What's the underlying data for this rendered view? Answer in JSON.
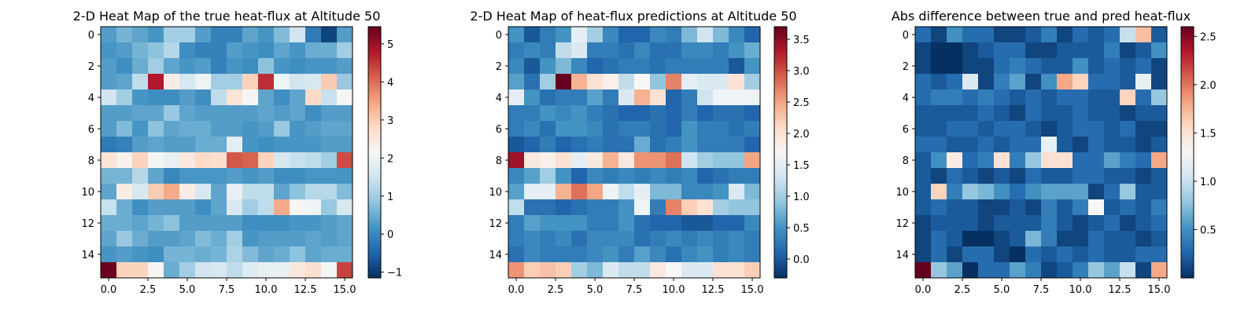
{
  "chart_data": [
    {
      "type": "heatmap",
      "title": "2-D Heat Map of the true heat-flux at Altitude 50",
      "xlabel": "",
      "ylabel": "",
      "colormap": "RdBu_r",
      "vmin": -1.15,
      "vmax": 5.45,
      "xlim": [
        -0.5,
        15.5
      ],
      "ylim": [
        15.5,
        -0.5
      ],
      "x_ticks": [
        0,
        2.5,
        5,
        7.5,
        10,
        12.5,
        15
      ],
      "x_tick_labels": [
        "0.0",
        "2.5",
        "5.0",
        "7.5",
        "10.0",
        "12.5",
        "15.0"
      ],
      "y_ticks": [
        0,
        2,
        4,
        6,
        8,
        10,
        12,
        14
      ],
      "y_tick_labels": [
        "0",
        "2",
        "4",
        "6",
        "8",
        "10",
        "12",
        "14"
      ],
      "colorbar_ticks": [
        -1,
        0,
        1,
        2,
        3,
        4,
        5
      ],
      "colorbar_tick_labels": [
        "−1",
        "0",
        "1",
        "2",
        "3",
        "4",
        "5"
      ],
      "values": [
        [
          0.3,
          0.6,
          0.4,
          0.2,
          1.0,
          1.0,
          0.3,
          -0.1,
          -0.1,
          0.4,
          0.2,
          0.7,
          1.5,
          -0.2,
          -0.9,
          0.3
        ],
        [
          0.2,
          0.3,
          0.6,
          0.8,
          1.2,
          0.1,
          -0.1,
          -0.1,
          0.3,
          0.2,
          0.1,
          0.4,
          0.2,
          0.5,
          0.5,
          1.0
        ],
        [
          0.3,
          0.1,
          0.5,
          1.0,
          0.4,
          0.2,
          0.3,
          -0.1,
          0.2,
          0.1,
          0.8,
          0.2,
          0.1,
          0.2,
          0.2,
          0.3
        ],
        [
          0.3,
          0.4,
          1.3,
          4.8,
          2.4,
          1.6,
          2.0,
          1.0,
          1.0,
          2.9,
          4.6,
          2.0,
          1.5,
          1.6,
          3.0,
          0.9
        ],
        [
          1.5,
          1.0,
          0.2,
          0.1,
          0.1,
          0.3,
          0.1,
          1.3,
          2.6,
          2.2,
          0.4,
          0.1,
          0.4,
          2.8,
          1.4,
          2.2
        ],
        [
          0.3,
          0.3,
          0.4,
          0.4,
          0.9,
          0.4,
          0.3,
          0.3,
          0.3,
          0.3,
          0.4,
          0.3,
          0.4,
          0.1,
          0.3,
          0.3
        ],
        [
          0.3,
          0.7,
          0.2,
          0.8,
          0.4,
          0.5,
          0.5,
          0.3,
          0.3,
          0.2,
          0.3,
          0.9,
          0.2,
          0.3,
          0.4,
          0.4
        ],
        [
          -0.2,
          -0.1,
          0.3,
          0.4,
          0.3,
          0.3,
          0.5,
          0.5,
          1.8,
          0.2,
          0.1,
          0.2,
          0.2,
          0.2,
          0.3,
          0.3
        ],
        [
          2.6,
          2.3,
          2.9,
          2.1,
          1.9,
          2.5,
          2.8,
          2.7,
          4.2,
          4.1,
          2.9,
          1.6,
          1.4,
          1.3,
          1.0,
          4.3
        ],
        [
          0.6,
          0.6,
          1.2,
          0.4,
          0.0,
          0.2,
          0.2,
          0.2,
          0.3,
          0.2,
          0.3,
          0.1,
          0.1,
          0.2,
          0.2,
          0.2
        ],
        [
          0.4,
          2.4,
          1.6,
          3.0,
          3.4,
          2.4,
          1.6,
          0.4,
          1.9,
          1.3,
          1.3,
          0.4,
          0.8,
          1.2,
          1.2,
          0.7
        ],
        [
          1.4,
          0.5,
          0.1,
          0.3,
          0.3,
          0.3,
          0.1,
          0.4,
          1.6,
          1.0,
          1.3,
          3.4,
          2.2,
          2.0,
          0.9,
          1.6
        ],
        [
          0.5,
          0.5,
          0.4,
          0.6,
          0.8,
          0.3,
          0.3,
          0.3,
          0.3,
          0.1,
          0.1,
          0.1,
          0.2,
          0.2,
          0.3,
          0.4
        ],
        [
          0.4,
          0.9,
          0.5,
          0.3,
          0.3,
          0.4,
          0.7,
          0.5,
          1.0,
          0.2,
          0.3,
          0.3,
          0.3,
          0.4,
          0.3,
          0.4
        ],
        [
          0.2,
          0.3,
          0.2,
          0.1,
          0.6,
          0.6,
          0.5,
          0.6,
          1.1,
          0.7,
          0.4,
          0.5,
          0.8,
          0.4,
          0.5,
          0.5
        ],
        [
          5.4,
          2.9,
          2.9,
          2.2,
          0.5,
          1.0,
          1.5,
          1.6,
          1.3,
          1.7,
          1.9,
          1.9,
          2.5,
          2.7,
          2.1,
          4.4
        ]
      ]
    },
    {
      "type": "heatmap",
      "title": "2-D Heat Map of heat-flux predictions at Altitude 50",
      "xlabel": "",
      "ylabel": "",
      "colormap": "RdBu_r",
      "vmin": -0.3,
      "vmax": 3.7,
      "xlim": [
        -0.5,
        15.5
      ],
      "ylim": [
        15.5,
        -0.5
      ],
      "x_ticks": [
        0,
        2.5,
        5,
        7.5,
        10,
        12.5,
        15
      ],
      "x_tick_labels": [
        "0.0",
        "2.5",
        "5.0",
        "7.5",
        "10.0",
        "12.5",
        "15.0"
      ],
      "y_ticks": [
        0,
        2,
        4,
        6,
        8,
        10,
        12,
        14
      ],
      "y_tick_labels": [
        "0",
        "2",
        "4",
        "6",
        "8",
        "10",
        "12",
        "14"
      ],
      "colorbar_ticks": [
        0,
        0.5,
        1,
        1.5,
        2,
        2.5,
        3,
        3.5
      ],
      "colorbar_tick_labels": [
        "0.0",
        "0.5",
        "1.0",
        "1.5",
        "2.0",
        "2.5",
        "3.0",
        "3.5"
      ],
      "values": [
        [
          0.5,
          0.0,
          0.3,
          0.5,
          1.5,
          1.0,
          0.4,
          0.1,
          0.1,
          0.4,
          0.3,
          0.8,
          1.3,
          0.8,
          0.4,
          0.1
        ],
        [
          0.3,
          0.4,
          0.3,
          1.2,
          1.4,
          0.3,
          0.3,
          0.2,
          0.4,
          0.2,
          0.2,
          0.4,
          0.4,
          0.3,
          0.5,
          0.7
        ],
        [
          0.4,
          0.0,
          0.5,
          0.8,
          0.4,
          0.1,
          0.2,
          0.3,
          0.3,
          0.2,
          0.3,
          0.3,
          0.3,
          0.3,
          0.0,
          0.5
        ],
        [
          0.6,
          0.2,
          1.0,
          3.7,
          2.4,
          2.0,
          1.8,
          1.2,
          1.7,
          0.9,
          2.7,
          1.5,
          1.4,
          1.4,
          2.0,
          1.0
        ],
        [
          1.5,
          0.5,
          0.2,
          0.3,
          0.3,
          0.6,
          0.3,
          1.4,
          2.4,
          2.0,
          0.1,
          0.3,
          1.3,
          1.6,
          1.6,
          1.6
        ],
        [
          0.3,
          0.3,
          0.5,
          0.4,
          0.5,
          0.3,
          0.2,
          0.1,
          0.1,
          0.2,
          0.1,
          0.3,
          0.1,
          0.2,
          0.2,
          0.1
        ],
        [
          0.3,
          0.4,
          0.2,
          0.5,
          0.5,
          0.4,
          0.2,
          0.3,
          0.3,
          0.2,
          0.1,
          0.5,
          0.3,
          0.3,
          0.2,
          0.3
        ],
        [
          0.0,
          0.1,
          0.3,
          0.1,
          0.2,
          0.3,
          0.2,
          0.2,
          0.7,
          0.2,
          0.3,
          0.5,
          0.3,
          0.3,
          0.3,
          0.1
        ],
        [
          3.4,
          1.9,
          1.8,
          2.0,
          1.5,
          1.9,
          2.4,
          1.9,
          2.6,
          2.6,
          2.8,
          1.3,
          1.0,
          0.9,
          0.9,
          2.5
        ],
        [
          0.4,
          0.6,
          1.0,
          0.5,
          0.1,
          0.4,
          0.3,
          0.4,
          0.3,
          0.4,
          0.3,
          0.4,
          0.1,
          0.2,
          0.3,
          0.3
        ],
        [
          0.6,
          1.5,
          1.5,
          2.4,
          2.8,
          2.5,
          1.6,
          1.2,
          1.5,
          0.8,
          0.8,
          0.4,
          0.4,
          0.5,
          1.4,
          0.8
        ],
        [
          1.2,
          0.2,
          0.2,
          0.1,
          0.2,
          0.3,
          0.3,
          0.5,
          1.6,
          0.3,
          2.7,
          2.2,
          2.0,
          1.0,
          0.9,
          0.9
        ],
        [
          0.3,
          0.6,
          0.5,
          0.5,
          0.5,
          0.3,
          0.3,
          0.5,
          0.2,
          0.1,
          0.1,
          0.0,
          0.0,
          0.1,
          0.1,
          0.4
        ],
        [
          0.3,
          0.4,
          0.3,
          0.4,
          0.2,
          0.4,
          0.4,
          0.4,
          0.2,
          0.3,
          0.4,
          0.3,
          0.4,
          0.3,
          0.4,
          0.3
        ],
        [
          0.2,
          0.4,
          0.3,
          0.3,
          0.3,
          0.4,
          0.5,
          0.3,
          0.6,
          0.4,
          0.2,
          0.4,
          0.5,
          0.3,
          0.4,
          0.3
        ],
        [
          2.6,
          2.2,
          2.3,
          2.2,
          1.0,
          0.8,
          1.4,
          1.2,
          1.2,
          1.9,
          1.7,
          1.4,
          1.4,
          2.0,
          2.0,
          2.2
        ]
      ]
    },
    {
      "type": "heatmap",
      "title": "Abs difference between true and pred heat-flux",
      "xlabel": "",
      "ylabel": "",
      "colormap": "RdBu_r",
      "vmin": 0.0,
      "vmax": 2.6,
      "xlim": [
        -0.5,
        15.5
      ],
      "ylim": [
        15.5,
        -0.5
      ],
      "x_ticks": [
        0,
        2.5,
        5,
        7.5,
        10,
        12.5,
        15
      ],
      "x_tick_labels": [
        "0.0",
        "2.5",
        "5.0",
        "7.5",
        "10.0",
        "12.5",
        "15.0"
      ],
      "y_ticks": [
        0,
        2,
        4,
        6,
        8,
        10,
        12,
        14
      ],
      "y_tick_labels": [
        "0",
        "2",
        "4",
        "6",
        "8",
        "10",
        "12",
        "14"
      ],
      "colorbar_ticks": [
        0.5,
        1.0,
        1.5,
        2.0,
        2.5
      ],
      "colorbar_tick_labels": [
        "0.5",
        "1.0",
        "1.5",
        "2.0",
        "2.5"
      ],
      "values": [
        [
          0.3,
          0.1,
          0.5,
          0.3,
          0.3,
          0.1,
          0.1,
          0.2,
          0.4,
          0.1,
          0.3,
          0.2,
          0.3,
          1.0,
          1.7,
          0.2
        ],
        [
          0.1,
          0.0,
          0.0,
          0.1,
          0.2,
          0.3,
          0.3,
          0.1,
          0.1,
          0.2,
          0.2,
          0.2,
          0.4,
          0.1,
          0.2,
          0.5
        ],
        [
          0.1,
          0.0,
          0.0,
          0.1,
          0.1,
          0.3,
          0.4,
          0.3,
          0.2,
          0.2,
          0.5,
          0.2,
          0.3,
          0.2,
          0.3,
          0.1
        ],
        [
          0.3,
          0.2,
          0.3,
          1.1,
          0.1,
          0.4,
          0.6,
          0.1,
          0.5,
          1.8,
          1.6,
          0.3,
          0.3,
          0.2,
          1.2,
          0.1
        ],
        [
          0.3,
          0.4,
          0.4,
          0.3,
          0.4,
          0.3,
          0.2,
          0.3,
          0.2,
          0.3,
          0.3,
          0.2,
          0.2,
          1.6,
          0.3,
          0.8
        ],
        [
          0.2,
          0.2,
          0.2,
          0.2,
          0.3,
          0.2,
          0.1,
          0.3,
          0.2,
          0.2,
          0.3,
          0.2,
          0.2,
          0.1,
          0.2,
          0.2
        ],
        [
          0.2,
          0.2,
          0.3,
          0.3,
          0.2,
          0.3,
          0.3,
          0.2,
          0.1,
          0.2,
          0.3,
          0.3,
          0.2,
          0.3,
          0.1,
          0.1
        ],
        [
          0.3,
          0.3,
          0.2,
          0.2,
          0.3,
          0.2,
          0.3,
          0.3,
          1.2,
          0.2,
          0.1,
          0.3,
          0.2,
          0.2,
          0.1,
          0.2
        ],
        [
          0.2,
          0.5,
          1.4,
          0.3,
          0.4,
          1.5,
          0.4,
          0.8,
          1.5,
          1.5,
          0.3,
          0.3,
          0.6,
          0.4,
          0.3,
          1.8
        ],
        [
          0.2,
          0.1,
          0.3,
          0.2,
          0.1,
          0.2,
          0.1,
          0.3,
          0.2,
          0.2,
          0.3,
          0.3,
          0.2,
          0.2,
          0.1,
          0.2
        ],
        [
          0.2,
          1.6,
          0.4,
          0.8,
          0.7,
          0.5,
          0.3,
          0.5,
          0.6,
          0.6,
          0.6,
          0.1,
          0.3,
          0.8,
          0.2,
          0.2
        ],
        [
          0.2,
          0.3,
          0.2,
          0.2,
          0.1,
          0.1,
          0.2,
          0.1,
          0.4,
          0.2,
          0.4,
          1.3,
          0.2,
          0.3,
          0.2,
          0.4
        ],
        [
          0.1,
          0.2,
          0.2,
          0.2,
          0.1,
          0.2,
          0.2,
          0.2,
          0.4,
          0.2,
          0.1,
          0.2,
          0.3,
          0.1,
          0.2,
          0.3
        ],
        [
          0.1,
          0.3,
          0.2,
          0.0,
          0.0,
          0.1,
          0.2,
          0.7,
          0.4,
          0.1,
          0.1,
          0.3,
          0.2,
          0.2,
          0.1,
          0.2
        ],
        [
          0.1,
          0.3,
          0.1,
          0.3,
          0.3,
          0.1,
          0.0,
          0.3,
          0.2,
          0.3,
          0.2,
          0.3,
          0.2,
          0.2,
          0.3,
          0.3
        ],
        [
          2.6,
          0.8,
          0.6,
          0.0,
          0.3,
          0.3,
          0.6,
          0.4,
          0.1,
          0.2,
          0.4,
          0.8,
          0.6,
          1.0,
          0.1,
          1.8
        ]
      ]
    }
  ]
}
